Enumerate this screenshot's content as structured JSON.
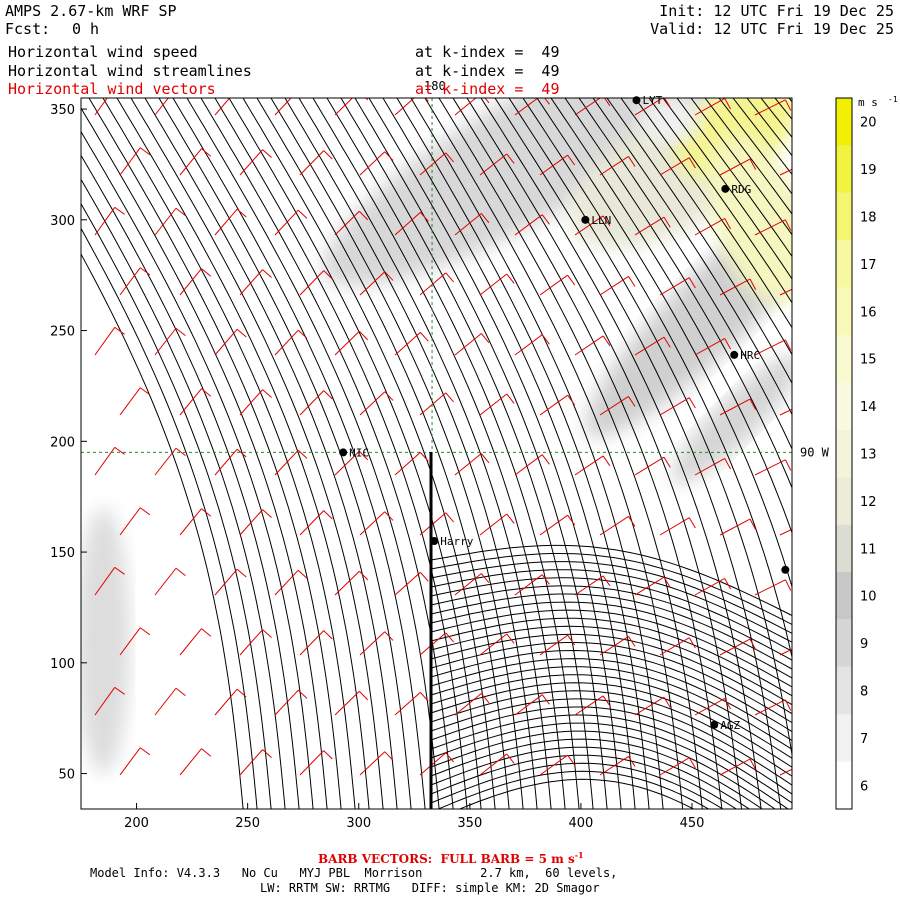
{
  "header": {
    "model": "AMPS 2.67-km WRF SP",
    "fcst_label": "Fcst:",
    "fcst_value": "0 h",
    "init": "Init: 12 UTC Fri 19 Dec 25",
    "valid": "Valid: 12 UTC Fri 19 Dec 25",
    "fields": [
      {
        "name": "Horizontal wind speed",
        "level": "at k-index =  49",
        "color": "#000000"
      },
      {
        "name": "Horizontal wind streamlines",
        "level": "at k-index =  49",
        "color": "#000000"
      },
      {
        "name": "Horizontal wind vectors",
        "level": "at k-index =  49",
        "color": "#e00000"
      }
    ]
  },
  "chart_data": {
    "type": "heatmap",
    "xlim": [
      175,
      495
    ],
    "ylim": [
      34,
      355
    ],
    "x_ticks": [
      200,
      250,
      300,
      350,
      400,
      450
    ],
    "y_ticks": [
      50,
      100,
      150,
      200,
      250,
      300,
      350
    ],
    "grid_lines": [
      {
        "label": "180",
        "axis": "x",
        "value": 333
      },
      {
        "label": "90 W",
        "axis": "y",
        "value": 195
      }
    ],
    "colorbar": {
      "unit": "m s",
      "unit_exp": "-1",
      "levels": [
        6,
        7,
        8,
        9,
        10,
        11,
        12,
        13,
        14,
        15,
        16,
        17,
        18,
        19,
        20
      ],
      "colors": [
        "#ffffff",
        "#f2f2f2",
        "#e4e4e4",
        "#d6d6d6",
        "#c8c8c8",
        "#dcdcd2",
        "#ececd8",
        "#f4f4da",
        "#fafae0",
        "#fafad0",
        "#fafab8",
        "#f8f8a0",
        "#f6f670",
        "#f2f240",
        "#f0f000"
      ]
    },
    "stations": [
      {
        "name": "LYT",
        "x": 425,
        "y": 354
      },
      {
        "name": "RDG",
        "x": 465,
        "y": 314
      },
      {
        "name": "LLN",
        "x": 402,
        "y": 300
      },
      {
        "name": "HRC",
        "x": 469,
        "y": 239
      },
      {
        "name": "NIC",
        "x": 293,
        "y": 195
      },
      {
        "name": "Harry",
        "x": 334,
        "y": 155
      },
      {
        "name": "",
        "x": 492,
        "y": 142
      },
      {
        "name": "AGZ",
        "x": 460,
        "y": 72
      }
    ]
  },
  "footer": {
    "barb_note": "BARB VECTORS:  FULL BARB = 5 m s",
    "barb_exp": "-1",
    "model_info": "Model Info: V4.3.3   No Cu   MYJ PBL  Morrison        2.7 km,  60 levels,",
    "physics": "LW: RRTM SW: RRTMG   DIFF: simple KM: 2D Smagor"
  }
}
